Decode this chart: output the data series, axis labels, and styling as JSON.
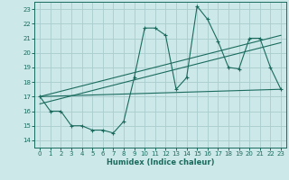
{
  "xlabel": "Humidex (Indice chaleur)",
  "background_color": "#cce8e8",
  "grid_color": "#aacccc",
  "line_color": "#1a6b5e",
  "xlim": [
    -0.5,
    23.5
  ],
  "ylim": [
    13.5,
    23.5
  ],
  "yticks": [
    14,
    15,
    16,
    17,
    18,
    19,
    20,
    21,
    22,
    23
  ],
  "xticks": [
    0,
    1,
    2,
    3,
    4,
    5,
    6,
    7,
    8,
    9,
    10,
    11,
    12,
    13,
    14,
    15,
    16,
    17,
    18,
    19,
    20,
    21,
    22,
    23
  ],
  "series1_x": [
    0,
    1,
    2,
    3,
    4,
    5,
    6,
    7,
    8,
    9,
    10,
    11,
    12,
    13,
    14,
    15,
    16,
    17,
    18,
    19,
    20,
    21,
    22,
    23
  ],
  "series1_y": [
    17.0,
    16.0,
    16.0,
    15.0,
    15.0,
    14.7,
    14.7,
    14.5,
    15.3,
    18.3,
    21.7,
    21.7,
    21.2,
    17.5,
    18.3,
    23.2,
    22.3,
    20.8,
    19.0,
    18.9,
    21.0,
    21.0,
    19.0,
    17.5
  ],
  "series2_x": [
    0,
    23
  ],
  "series2_y": [
    17.0,
    17.5
  ],
  "series3_x": [
    0,
    23
  ],
  "series3_y": [
    17.0,
    21.2
  ],
  "series4_x": [
    0,
    23
  ],
  "series4_y": [
    16.5,
    20.7
  ]
}
